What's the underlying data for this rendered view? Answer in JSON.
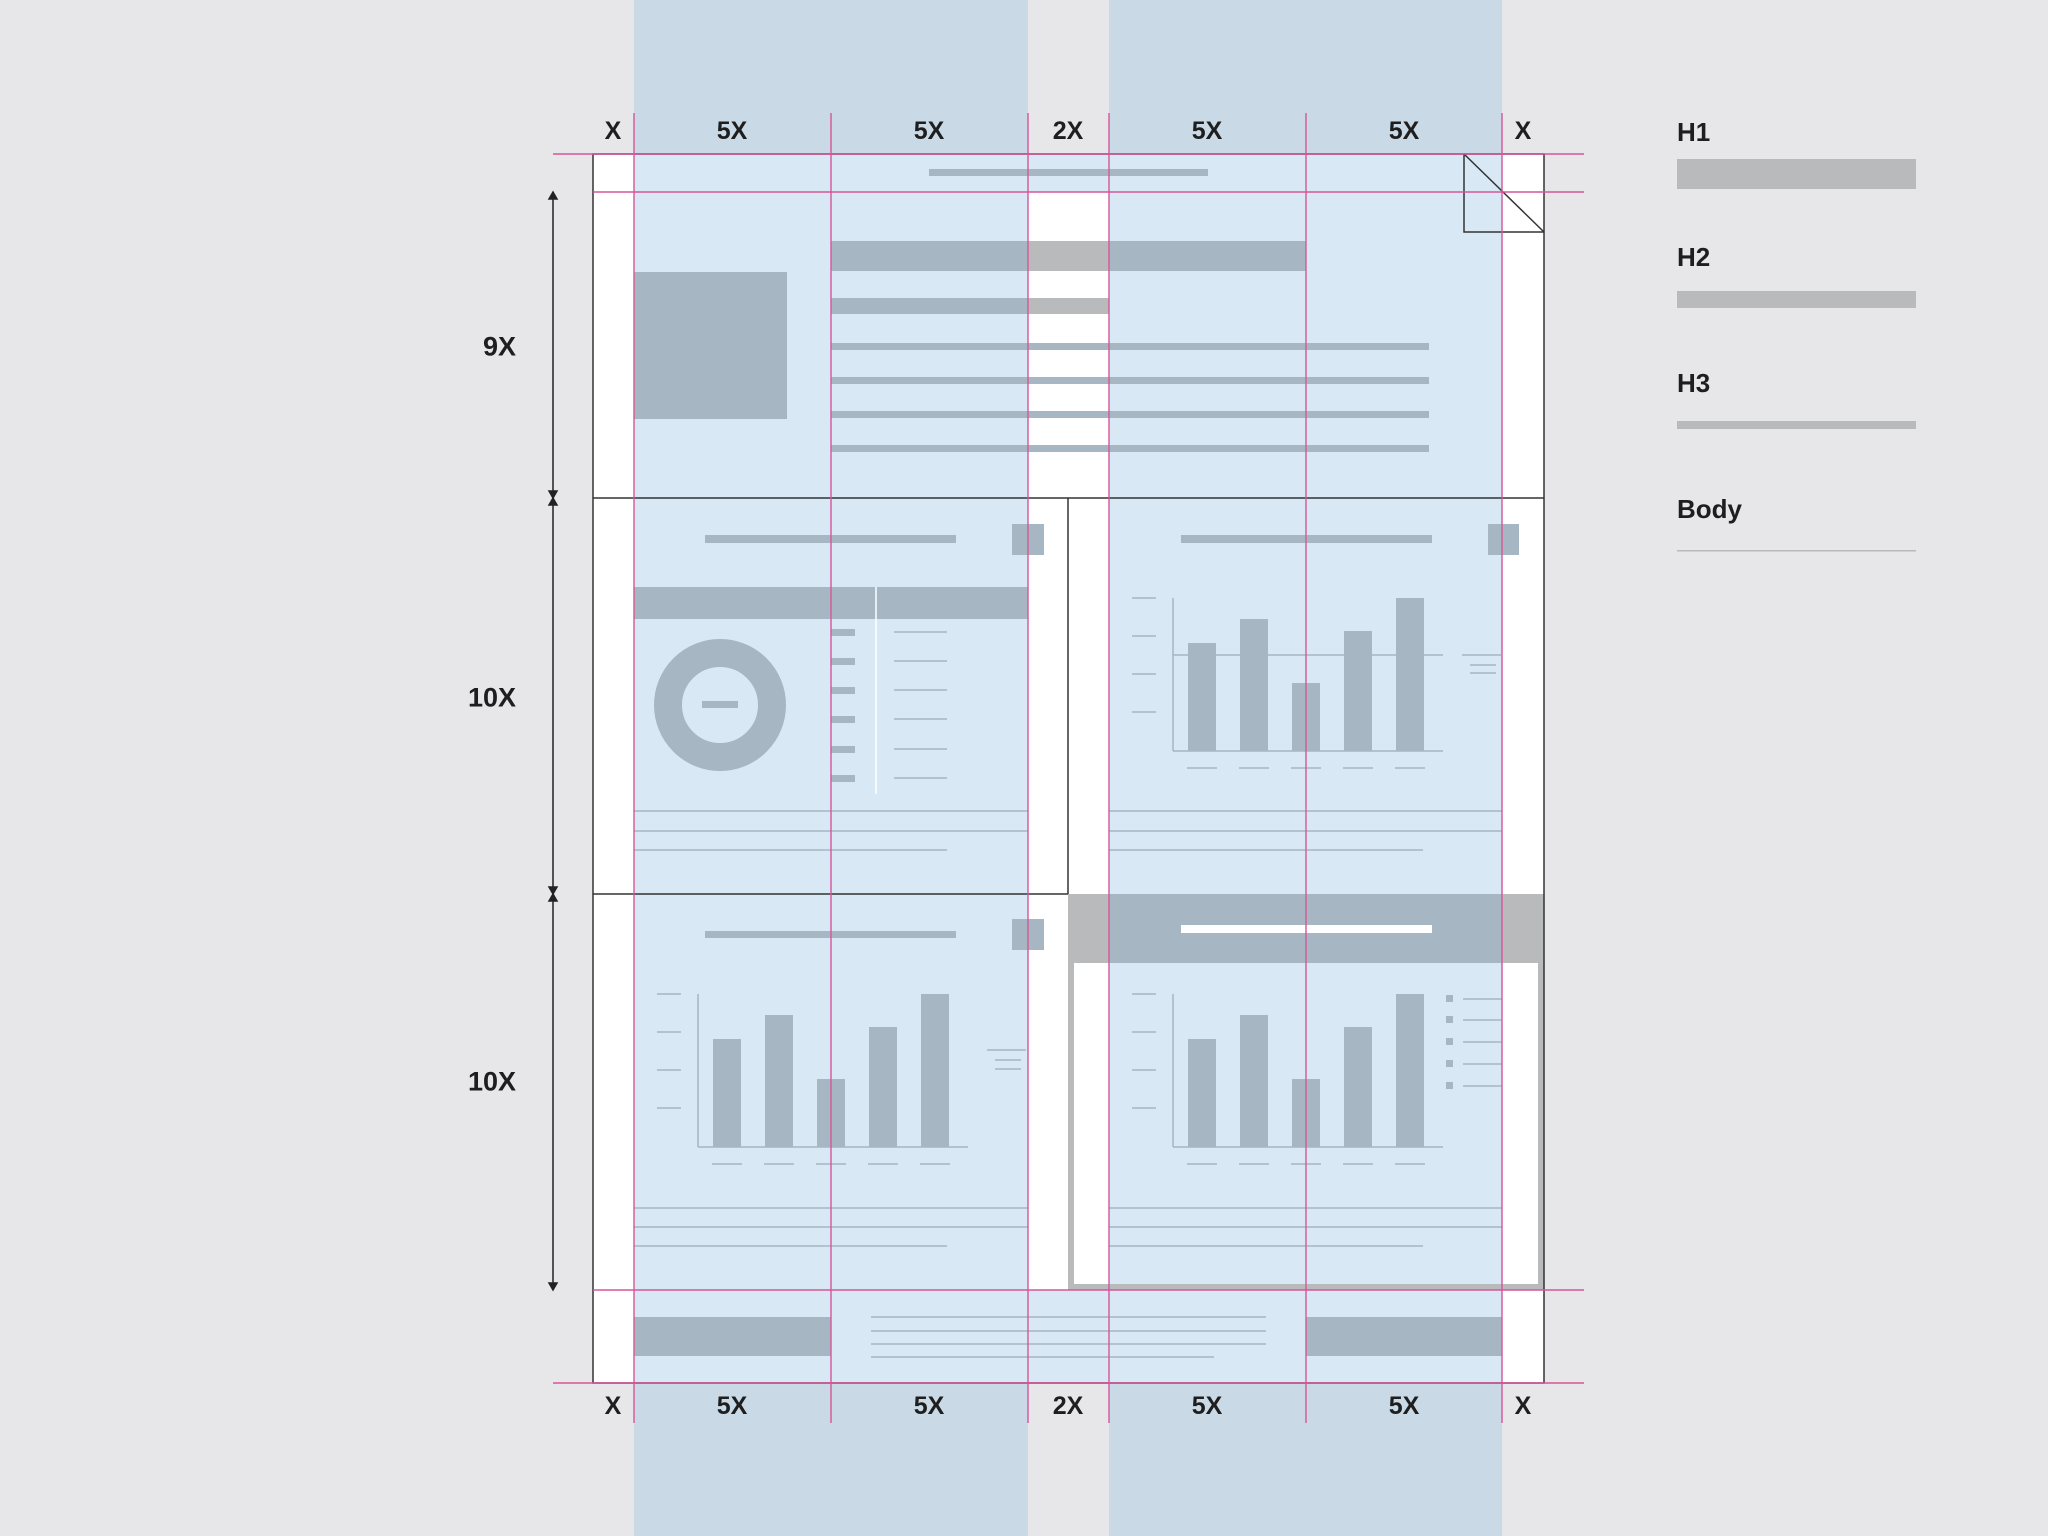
{
  "columns": {
    "labels": [
      "X",
      "5X",
      "5X",
      "2X",
      "5X",
      "5X",
      "X"
    ]
  },
  "rows": {
    "labels": [
      "9X",
      "10X",
      "10X"
    ]
  },
  "legend": {
    "items": [
      {
        "label": "H1"
      },
      {
        "label": "H2"
      },
      {
        "label": "H3"
      },
      {
        "label": "Body"
      }
    ]
  },
  "colors": {
    "background": "#e7e7ea",
    "column_band": "#c9dae6",
    "content_fill": "#d9e8f5",
    "placeholder": "#a6b6c3",
    "legend_bar": "#b9babb",
    "guide": "#d6559a",
    "frame": "#333333"
  }
}
